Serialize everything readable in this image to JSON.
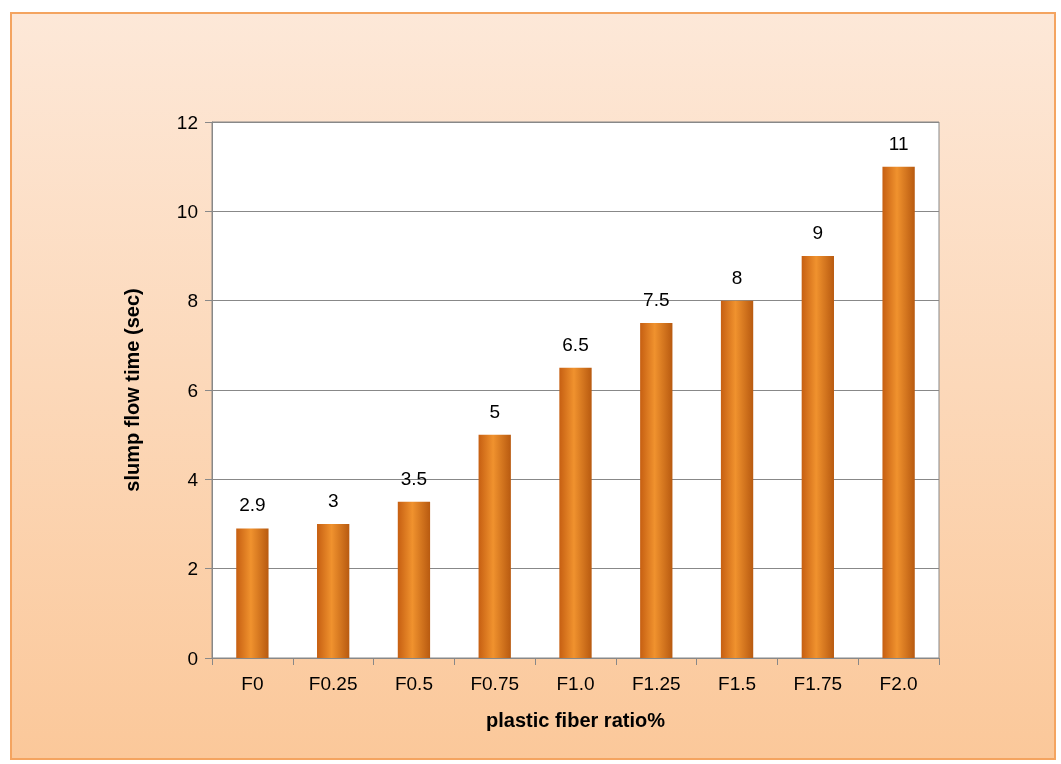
{
  "chart_data": {
    "type": "bar",
    "xlabel": "plastic fiber ratio%",
    "ylabel": "slump flow time (sec)",
    "categories": [
      "F0",
      "F0.25",
      "F0.5",
      "F0.75",
      "F1.0",
      "F1.25",
      "F1.5",
      "F1.75",
      "F2.0"
    ],
    "values": [
      2.9,
      3,
      3.5,
      5,
      6.5,
      7.5,
      8,
      9,
      11
    ],
    "color": "#f0922e",
    "ylim": [
      0,
      12
    ],
    "yticks": [
      0,
      2,
      4,
      6,
      8,
      10,
      12
    ],
    "grid": "y",
    "data_labels": true
  }
}
